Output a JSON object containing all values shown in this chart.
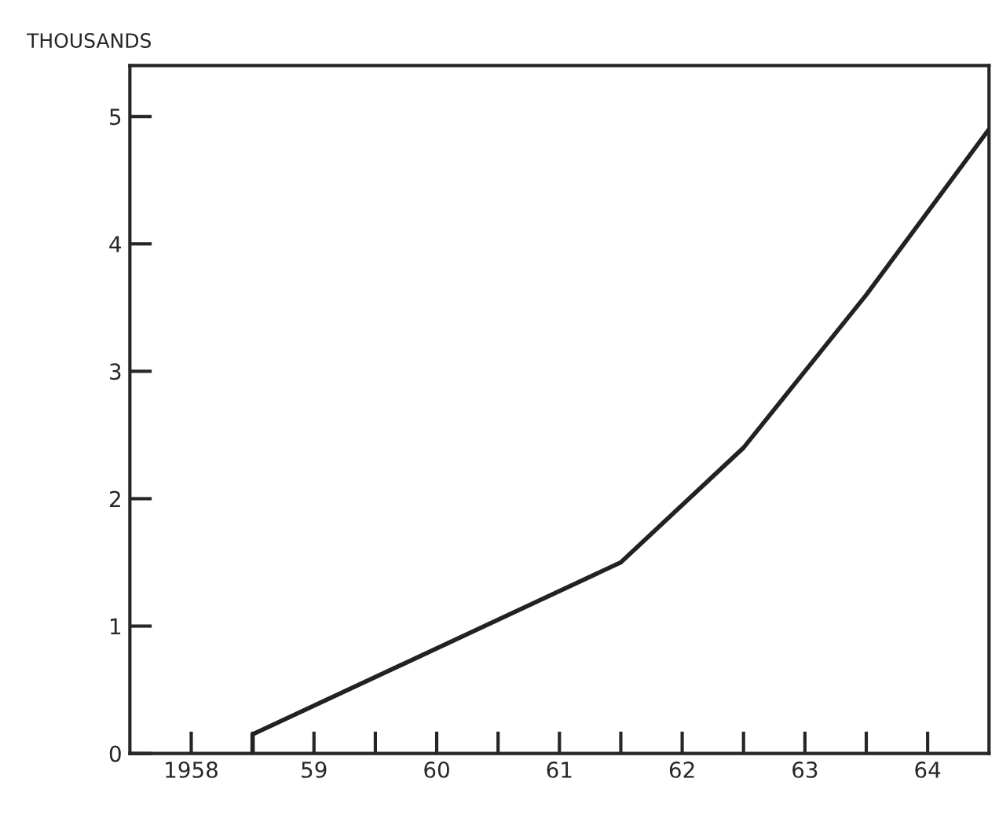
{
  "chart_data": {
    "type": "line",
    "ylabel": "THOUSANDS",
    "x": [
      1958.5,
      1958.5,
      1961.5,
      1962.5,
      1963.5,
      1964.5
    ],
    "series": [
      {
        "color": "#222222",
        "values": [
          0,
          0.15,
          1.5,
          2.4,
          3.6,
          4.9
        ]
      }
    ],
    "xlim": [
      1957.5,
      1964.5
    ],
    "ylim": [
      0,
      5.4
    ],
    "xticks": [
      {
        "value": 1958,
        "label": "1958"
      },
      {
        "value": 1958.5,
        "label": null
      },
      {
        "value": 1959,
        "label": "59"
      },
      {
        "value": 1959.5,
        "label": null
      },
      {
        "value": 1960,
        "label": "60"
      },
      {
        "value": 1960.5,
        "label": null
      },
      {
        "value": 1961,
        "label": "61"
      },
      {
        "value": 1961.5,
        "label": null
      },
      {
        "value": 1962,
        "label": "62"
      },
      {
        "value": 1962.5,
        "label": null
      },
      {
        "value": 1963,
        "label": "63"
      },
      {
        "value": 1963.5,
        "label": null
      },
      {
        "value": 1964,
        "label": "64"
      }
    ],
    "yticks": [
      0,
      1,
      2,
      3,
      4,
      5
    ],
    "grid": false,
    "marker": "none",
    "line_style": "solid",
    "legend": false
  }
}
